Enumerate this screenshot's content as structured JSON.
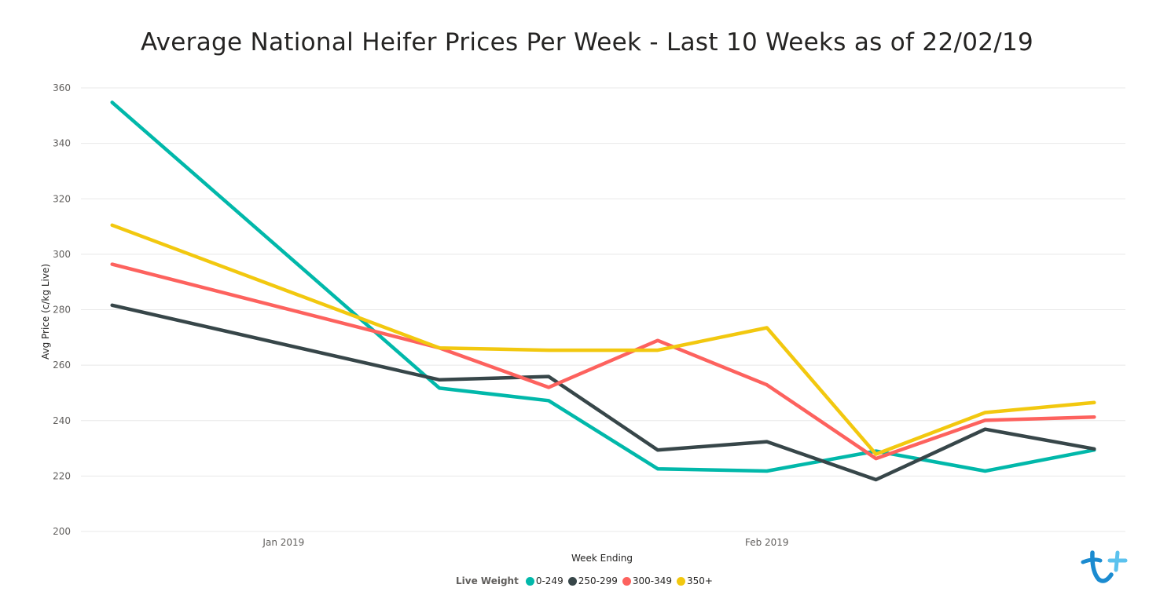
{
  "chart_data": {
    "type": "line",
    "title": "Average National Heifer Prices Per Week - Last 10 Weeks as of 22/02/19",
    "xlabel": "Week Ending",
    "ylabel": "Avg Price (c/kg Live)",
    "ylim": [
      200,
      360
    ],
    "yticks": [
      "200",
      "220",
      "240",
      "260",
      "280",
      "300",
      "320",
      "340",
      "360"
    ],
    "x_tick_labels": [
      {
        "label": "Jan 2019",
        "date": "2019-01-01"
      },
      {
        "label": "Feb 2019",
        "date": "2019-02-01"
      }
    ],
    "x": [
      "2018-12-21",
      "2019-01-11",
      "2019-01-18",
      "2019-01-25",
      "2019-02-01",
      "2019-02-08",
      "2019-02-15",
      "2019-02-22"
    ],
    "series": [
      {
        "name": "0-249",
        "color": "#01B8AA",
        "values": [
          354.8,
          251.7,
          247.2,
          222.6,
          221.8,
          229.0,
          221.8,
          229.4
        ]
      },
      {
        "name": "250-299",
        "color": "#374649",
        "values": [
          281.6,
          254.7,
          255.9,
          229.4,
          232.4,
          218.7,
          236.9,
          229.8
        ]
      },
      {
        "name": "300-349",
        "color": "#FD625E",
        "values": [
          296.4,
          266.2,
          252.0,
          268.9,
          252.9,
          226.3,
          240.1,
          241.3
        ]
      },
      {
        "name": "350+",
        "color": "#F2C80F",
        "values": [
          310.5,
          266.2,
          265.4,
          265.4,
          273.5,
          227.9,
          242.9,
          246.5
        ]
      }
    ],
    "grid": true,
    "legend": {
      "title": "Live Weight",
      "position": "bottom-center"
    }
  },
  "logo": {
    "name": "brand-logo-icon",
    "colors": [
      "#1b8bd0",
      "#5bc2ee"
    ]
  }
}
